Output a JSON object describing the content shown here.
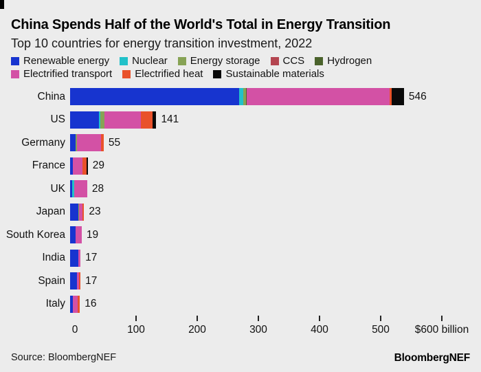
{
  "page": {
    "background_color": "#ececec"
  },
  "header": {
    "title": "China Spends Half of the World's Total in Energy Transition",
    "subtitle": "Top 10 countries for energy transition investment, 2022"
  },
  "chart_data": {
    "type": "bar",
    "stacked": true,
    "orientation": "horizontal",
    "title": "China Spends Half of the World's Total in Energy Transition",
    "subtitle": "Top 10 countries for energy transition investment, 2022",
    "categories": [
      "China",
      "US",
      "Germany",
      "France",
      "UK",
      "Japan",
      "South Korea",
      "India",
      "Spain",
      "Italy"
    ],
    "totals": [
      546,
      141,
      55,
      29,
      28,
      23,
      19,
      17,
      17,
      16
    ],
    "series": [
      {
        "name": "Renewable energy",
        "color": "#1734cf",
        "legend_row": 0,
        "values": [
          276,
          47,
          9,
          5,
          3.5,
          13,
          8.5,
          13.5,
          11,
          4.5
        ]
      },
      {
        "name": "Nuclear",
        "color": "#21c1c9",
        "legend_row": 0,
        "values": [
          7,
          3,
          0,
          0,
          3.5,
          0,
          0,
          0,
          0,
          0
        ]
      },
      {
        "name": "Energy storage",
        "color": "#87a355",
        "legend_row": 0,
        "values": [
          5,
          6,
          2,
          0,
          0,
          2,
          0,
          0,
          0,
          0
        ]
      },
      {
        "name": "CCS",
        "color": "#b44550",
        "legend_row": 0,
        "values": [
          0,
          0,
          0,
          0,
          0,
          0,
          0,
          0,
          0,
          0
        ]
      },
      {
        "name": "Hydrogen",
        "color": "#4b632c",
        "legend_row": 0,
        "values": [
          1,
          0,
          0,
          0,
          0,
          0,
          0,
          0,
          0,
          0
        ]
      },
      {
        "name": "Electrified transport",
        "color": "#d351a5",
        "legend_row": 1,
        "values": [
          234,
          60,
          40,
          15,
          21,
          5,
          10.5,
          3.5,
          4,
          7.5
        ]
      },
      {
        "name": "Electrified heat",
        "color": "#e9522b",
        "legend_row": 1,
        "values": [
          3,
          19,
          4,
          7,
          0,
          3,
          0,
          0,
          2,
          4
        ]
      },
      {
        "name": "Sustainable materials",
        "color": "#0a0a0a",
        "legend_row": 1,
        "values": [
          20,
          6,
          0,
          2,
          0,
          0,
          0,
          0,
          0,
          0
        ]
      }
    ],
    "axis": {
      "min": 0,
      "max": 600,
      "ticks": [
        0,
        100,
        200,
        300,
        400,
        500,
        600
      ],
      "tick_labels": [
        "0",
        "100",
        "200",
        "300",
        "400",
        "500",
        "$600 billion"
      ],
      "unit": "$ billion",
      "grid": false
    },
    "legend_position": "top",
    "data_labels": "totals at bar end"
  },
  "footer": {
    "source": "Source: BloombergNEF",
    "logo": "BloombergNEF"
  }
}
